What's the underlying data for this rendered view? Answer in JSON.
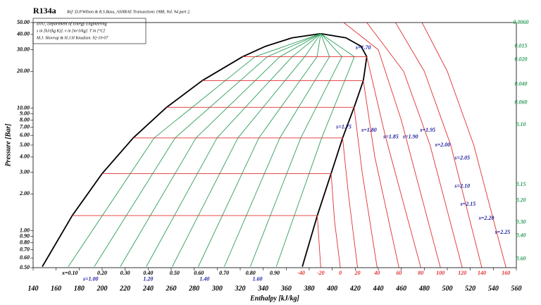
{
  "chart_data": {
    "type": "line",
    "title": "R134a",
    "subtitle": "Ref :D.P.Wilson & R.S.Basu, ASHRAE Transactions 1988, Vol. 94 part 2.",
    "notes": [
      "DTU, Department of Energy Engineering",
      "s in [kJ/(kg K)]. v in [m^3/kg]. T in [°C]",
      "M.J. Skovrup & H.J.H Knudsen. 92-10-07"
    ],
    "x_label": "Enthalpy [kJ/kg]",
    "y_label": "Pressure [Bar]",
    "log_y": true,
    "grid": false,
    "xlim": [
      140,
      560
    ],
    "xticks": [
      140,
      160,
      180,
      200,
      220,
      240,
      260,
      280,
      300,
      320,
      340,
      360,
      380,
      400,
      420,
      440,
      460,
      480,
      500,
      520,
      540,
      560
    ],
    "ylim": [
      0.5,
      50
    ],
    "yticks": [
      {
        "value": 50,
        "label": "50.00"
      },
      {
        "value": 40,
        "label": "40.00"
      },
      {
        "value": 30,
        "label": "30.00"
      },
      {
        "value": 20,
        "label": "20.00"
      },
      {
        "value": 10,
        "label": "10.00"
      },
      {
        "value": 9,
        "label": "9.00"
      },
      {
        "value": 8,
        "label": "8.00"
      },
      {
        "value": 7,
        "label": "7.00"
      },
      {
        "value": 6,
        "label": "6.00"
      },
      {
        "value": 5,
        "label": "5.00"
      },
      {
        "value": 4,
        "label": "4.00"
      },
      {
        "value": 3,
        "label": "3.00"
      },
      {
        "value": 2,
        "label": "2.00"
      },
      {
        "value": 1,
        "label": "1.00"
      },
      {
        "value": 0.9,
        "label": "0.90"
      },
      {
        "value": 0.8,
        "label": "0.80"
      },
      {
        "value": 0.7,
        "label": "0.70"
      },
      {
        "value": 0.6,
        "label": "0.60"
      },
      {
        "value": 0.5,
        "label": "0.50"
      }
    ],
    "series": [
      {
        "color": "#000000",
        "x": [
          148,
          174,
          200,
          227,
          256,
          287,
          322,
          342,
          365,
          390
        ],
        "values": [
          0.51,
          1.33,
          2.93,
          5.72,
          10.17,
          16.8,
          26.3,
          32,
          37.5,
          40.6
        ]
      },
      {
        "color": "#000000",
        "x": [
          374,
          387,
          399,
          409,
          419,
          427,
          430,
          425,
          412,
          390
        ],
        "values": [
          0.51,
          1.33,
          2.93,
          5.72,
          10.17,
          16.8,
          26.3,
          32,
          37.5,
          40.6
        ]
      },
      {
        "color": "#2e9e5b",
        "x": [
          170.6,
          245.2,
          332.8,
          390
        ],
        "values": [
          0.51,
          5.72,
          26.3,
          40.6
        ]
      },
      {
        "color": "#2e9e5b",
        "x": [
          193.2,
          263.4,
          343.6,
          390
        ],
        "values": [
          0.51,
          5.72,
          26.3,
          40.6
        ]
      },
      {
        "color": "#2e9e5b",
        "x": [
          215.8,
          281.6,
          354.4,
          390
        ],
        "values": [
          0.51,
          5.72,
          26.3,
          40.6
        ]
      },
      {
        "color": "#2e9e5b",
        "x": [
          238.4,
          299.8,
          365.2,
          390
        ],
        "values": [
          0.51,
          5.72,
          26.3,
          40.6
        ]
      },
      {
        "color": "#2e9e5b",
        "x": [
          261,
          318,
          376,
          390
        ],
        "values": [
          0.51,
          5.72,
          26.3,
          40.6
        ]
      },
      {
        "color": "#2e9e5b",
        "x": [
          283.6,
          336.2,
          386.8,
          390
        ],
        "values": [
          0.51,
          5.72,
          26.3,
          40.6
        ]
      },
      {
        "color": "#2e9e5b",
        "x": [
          306.2,
          354.4,
          397.6,
          390
        ],
        "values": [
          0.51,
          5.72,
          26.3,
          40.6
        ]
      },
      {
        "color": "#2e9e5b",
        "x": [
          328.8,
          372.6,
          408.4,
          390
        ],
        "values": [
          0.51,
          5.72,
          26.3,
          40.6
        ]
      },
      {
        "color": "#2e9e5b",
        "x": [
          351.4,
          390.8,
          419.2,
          390
        ],
        "values": [
          0.51,
          5.72,
          26.3,
          40.6
        ]
      },
      {
        "color": "#e03030",
        "x": [
          174,
          387,
          390
        ],
        "values": [
          1.33,
          1.33,
          0.5
        ]
      },
      {
        "color": "#e03030",
        "x": [
          200,
          399,
          402,
          407
        ],
        "values": [
          2.93,
          2.93,
          1.2,
          0.5
        ]
      },
      {
        "color": "#e03030",
        "x": [
          227,
          409,
          414,
          422
        ],
        "values": [
          5.72,
          5.72,
          2,
          0.5
        ]
      },
      {
        "color": "#e03030",
        "x": [
          256,
          419,
          426,
          439
        ],
        "values": [
          10.17,
          10.17,
          3,
          0.5
        ]
      },
      {
        "color": "#e03030",
        "x": [
          287,
          427,
          437,
          458
        ],
        "values": [
          16.8,
          16.8,
          4,
          0.5
        ]
      },
      {
        "color": "#e03030",
        "x": [
          322,
          430,
          446,
          477
        ],
        "values": [
          26.3,
          26.3,
          6,
          0.5
        ]
      },
      {
        "color": "#e03030",
        "x": [
          410,
          440,
          460,
          494
        ],
        "values": [
          50,
          30,
          8,
          0.5
        ]
      },
      {
        "color": "#e03030",
        "x": [
          430,
          462,
          485,
          513
        ],
        "values": [
          50,
          20,
          5,
          0.5
        ]
      },
      {
        "color": "#e03030",
        "x": [
          455,
          480,
          503,
          530
        ],
        "values": [
          50,
          20,
          5,
          0.5
        ]
      },
      {
        "color": "#e03030",
        "x": [
          478,
          500,
          523,
          551
        ],
        "values": [
          50,
          20,
          5,
          0.5
        ]
      }
    ],
    "annotations": [
      {
        "text": "x=0.10",
        "x": 172,
        "y": 0.45,
        "color": "#000000"
      },
      {
        "text": "0.20",
        "x": 200,
        "y": 0.45,
        "color": "#000000"
      },
      {
        "text": "0.30",
        "x": 220,
        "y": 0.45,
        "color": "#000000"
      },
      {
        "text": "0.40",
        "x": 240,
        "y": 0.45,
        "color": "#000000"
      },
      {
        "text": "0.50",
        "x": 263,
        "y": 0.45,
        "color": "#000000"
      },
      {
        "text": "0.60",
        "x": 284,
        "y": 0.45,
        "color": "#000000"
      },
      {
        "text": "0.70",
        "x": 306,
        "y": 0.45,
        "color": "#000000"
      },
      {
        "text": "0.80",
        "x": 329,
        "y": 0.45,
        "color": "#000000"
      },
      {
        "text": "0.90",
        "x": 350,
        "y": 0.45,
        "color": "#000000"
      },
      {
        "text": "s=1.00",
        "x": 190,
        "y": 0.4,
        "color": "#2020a0"
      },
      {
        "text": "1.20",
        "x": 240,
        "y": 0.4,
        "color": "#2020a0"
      },
      {
        "text": "1.40",
        "x": 289,
        "y": 0.4,
        "color": "#2020a0"
      },
      {
        "text": "1.60",
        "x": 335,
        "y": 0.4,
        "color": "#2020a0"
      },
      {
        "text": "-40",
        "x": 373,
        "y": 0.45,
        "color": "#e03030"
      },
      {
        "text": "-20",
        "x": 390,
        "y": 0.45,
        "color": "#e03030"
      },
      {
        "text": "0",
        "x": 407,
        "y": 0.45,
        "color": "#e03030"
      },
      {
        "text": "20",
        "x": 422,
        "y": 0.45,
        "color": "#e03030"
      },
      {
        "text": "40",
        "x": 439,
        "y": 0.45,
        "color": "#e03030"
      },
      {
        "text": "60",
        "x": 458,
        "y": 0.45,
        "color": "#e03030"
      },
      {
        "text": "80",
        "x": 477,
        "y": 0.45,
        "color": "#e03030"
      },
      {
        "text": "100",
        "x": 494,
        "y": 0.45,
        "color": "#e03030"
      },
      {
        "text": "120",
        "x": 513,
        "y": 0.45,
        "color": "#e03030"
      },
      {
        "text": "140",
        "x": 530,
        "y": 0.45,
        "color": "#e03030"
      },
      {
        "text": "160",
        "x": 551,
        "y": 0.45,
        "color": "#e03030"
      },
      {
        "text": "s=1.70",
        "x": 427,
        "y": 31,
        "color": "#2020a0"
      },
      {
        "text": "s=1.75",
        "x": 410,
        "y": 7.0,
        "color": "#2020a0"
      },
      {
        "text": "s=1.80",
        "x": 432,
        "y": 6.6,
        "color": "#2020a0"
      },
      {
        "text": "s=1.85",
        "x": 451,
        "y": 5.8,
        "color": "#2020a0"
      },
      {
        "text": "s=1.90",
        "x": 468,
        "y": 5.8,
        "color": "#2020a0"
      },
      {
        "text": "s=1.95",
        "x": 483,
        "y": 6.6,
        "color": "#2020a0"
      },
      {
        "text": "s=2.00",
        "x": 496,
        "y": 5.0,
        "color": "#2020a0"
      },
      {
        "text": "s=2.05",
        "x": 513,
        "y": 3.9,
        "color": "#2020a0"
      },
      {
        "text": "s=2.10",
        "x": 513,
        "y": 2.3,
        "color": "#2020a0"
      },
      {
        "text": "s=2.15",
        "x": 518,
        "y": 1.64,
        "color": "#2020a0"
      },
      {
        "text": "s=2.20",
        "x": 534,
        "y": 1.26,
        "color": "#2020a0"
      },
      {
        "text": "s=2.25",
        "x": 548,
        "y": 0.97,
        "color": "#2020a0"
      },
      {
        "text": "0.0060",
        "x": 564,
        "y": 50,
        "color": "#2e9e5b"
      },
      {
        "text": "0.015",
        "x": 564,
        "y": 32.1,
        "color": "#2e9e5b"
      },
      {
        "text": "0.020",
        "x": 564,
        "y": 24.9,
        "color": "#2e9e5b"
      },
      {
        "text": "0.040",
        "x": 564,
        "y": 15.7,
        "color": "#2e9e5b"
      },
      {
        "text": "0.060",
        "x": 564,
        "y": 11.1,
        "color": "#2e9e5b"
      },
      {
        "text": "0.10",
        "x": 564,
        "y": 7.3,
        "color": "#2e9e5b"
      },
      {
        "text": "0.15",
        "x": 564,
        "y": 2.38,
        "color": "#2e9e5b"
      },
      {
        "text": "0.20",
        "x": 564,
        "y": 1.76,
        "color": "#2e9e5b"
      },
      {
        "text": "0.30",
        "x": 564,
        "y": 1.17,
        "color": "#2e9e5b"
      },
      {
        "text": "0.40",
        "x": 564,
        "y": 0.91,
        "color": "#2e9e5b"
      },
      {
        "text": "0.60",
        "x": 564,
        "y": 0.59,
        "color": "#2e9e5b"
      }
    ]
  }
}
